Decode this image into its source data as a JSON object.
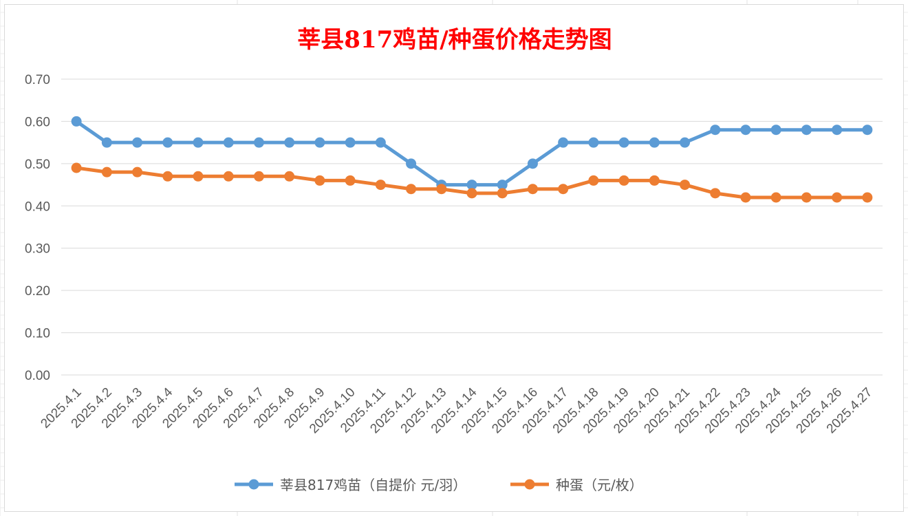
{
  "chart_data": {
    "type": "line",
    "title": "莘县817鸡苗/种蛋价格走势图",
    "categories": [
      "2025.4.1",
      "2025.4.2",
      "2025.4.3",
      "2025.4.4",
      "2025.4.5",
      "2025.4.6",
      "2025.4.7",
      "2025.4.8",
      "2025.4.9",
      "2025.4.10",
      "2025.4.11",
      "2025.4.12",
      "2025.4.13",
      "2025.4.14",
      "2025.4.15",
      "2025.4.16",
      "2025.4.17",
      "2025.4.18",
      "2025.4.19",
      "2025.4.20",
      "2025.4.21",
      "2025.4.22",
      "2025.4.23",
      "2025.4.24",
      "2025.4.25",
      "2025.4.26",
      "2025.4.27"
    ],
    "series": [
      {
        "name": "莘县817鸡苗（自提价 元/羽）",
        "color": "#5B9BD5",
        "values": [
          0.6,
          0.55,
          0.55,
          0.55,
          0.55,
          0.55,
          0.55,
          0.55,
          0.55,
          0.55,
          0.55,
          0.5,
          0.45,
          0.45,
          0.45,
          0.5,
          0.55,
          0.55,
          0.55,
          0.55,
          0.55,
          0.58,
          0.58,
          0.58,
          0.58,
          0.58,
          0.58
        ]
      },
      {
        "name": "种蛋（元/枚）",
        "color": "#ED7D31",
        "values": [
          0.49,
          0.48,
          0.48,
          0.47,
          0.47,
          0.47,
          0.47,
          0.47,
          0.46,
          0.46,
          0.45,
          0.44,
          0.44,
          0.43,
          0.43,
          0.44,
          0.44,
          0.46,
          0.46,
          0.46,
          0.45,
          0.43,
          0.42,
          0.42,
          0.42,
          0.42,
          0.42
        ]
      }
    ],
    "y_ticks": [
      "0.00",
      "0.10",
      "0.20",
      "0.30",
      "0.40",
      "0.50",
      "0.60",
      "0.70"
    ],
    "ylim": [
      0,
      0.7
    ],
    "grid": true,
    "legend_position": "bottom",
    "title_color": "#FF0000"
  }
}
